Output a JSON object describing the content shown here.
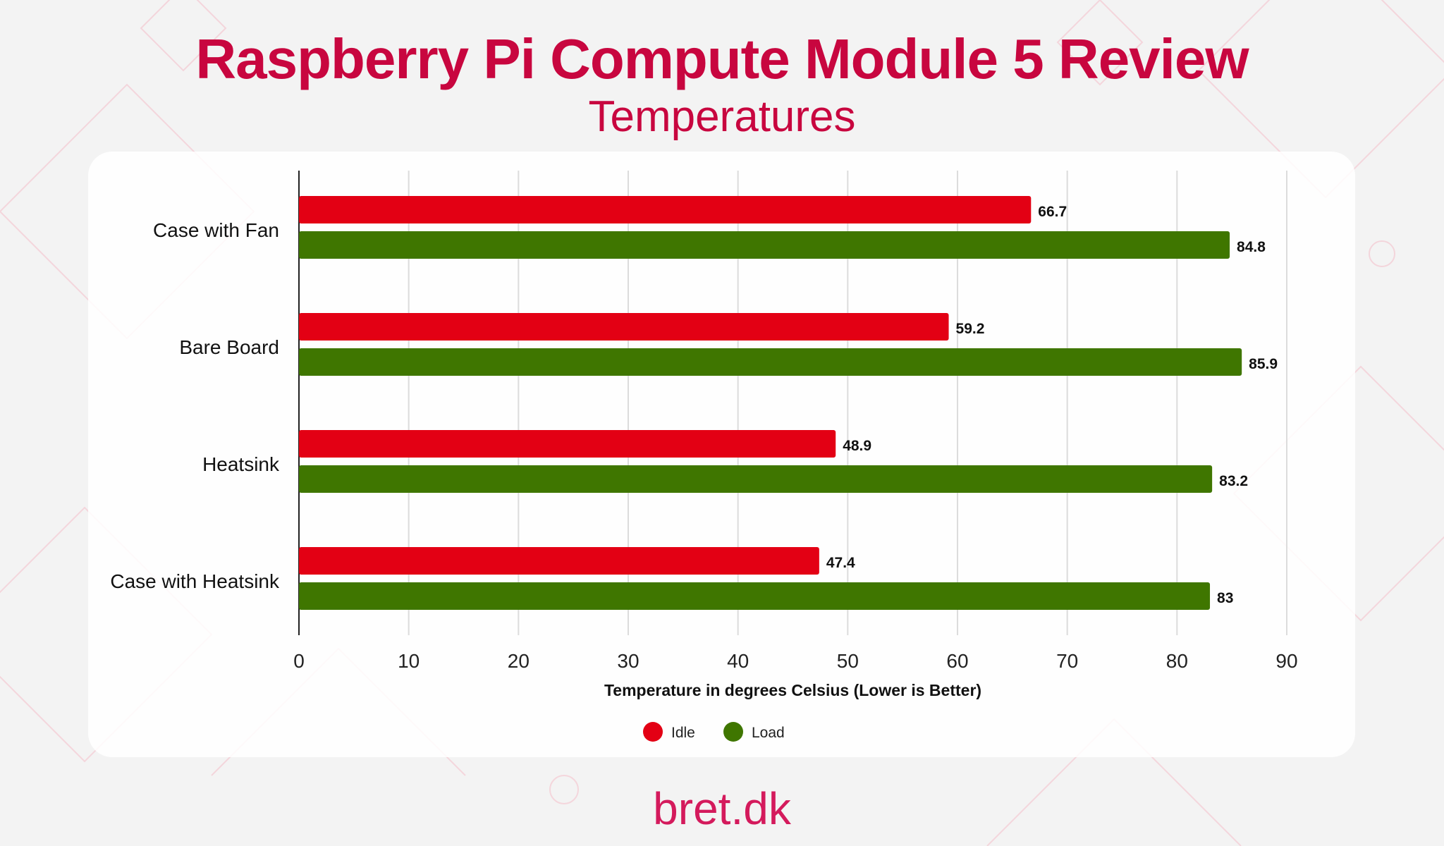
{
  "header": {
    "title": "Raspberry Pi Compute Module 5 Review",
    "subtitle": "Temperatures"
  },
  "brand": "bret.dk",
  "chart_data": {
    "type": "bar",
    "orientation": "horizontal",
    "title": "Raspberry Pi Compute Module 5 Review",
    "subtitle": "Temperatures",
    "categories": [
      "Case with Fan",
      "Bare Board",
      "Heatsink",
      "Case with Heatsink"
    ],
    "series": [
      {
        "name": "Idle",
        "color": "#e30014",
        "values": [
          66.7,
          59.2,
          48.9,
          47.4
        ]
      },
      {
        "name": "Load",
        "color": "#3f7600",
        "values": [
          84.8,
          85.9,
          83.2,
          83
        ]
      }
    ],
    "xlabel": "Temperature in degrees Celsius (Lower is Better)",
    "ylabel": "",
    "xlim": [
      0,
      90
    ],
    "xticks": [
      0,
      10,
      20,
      30,
      40,
      50,
      60,
      70,
      80,
      90
    ],
    "grid": true,
    "legend": "bottom"
  }
}
